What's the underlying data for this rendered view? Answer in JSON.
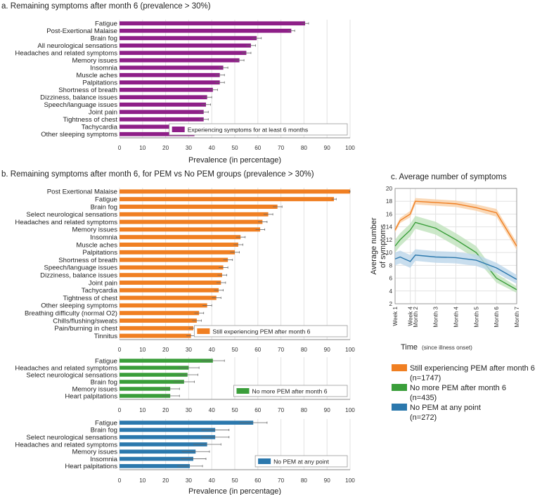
{
  "chart_data": [
    {
      "type": "bar",
      "id": "panel-a",
      "title": "a. Remaining symptoms after month 6 (prevalence > 30%)",
      "xlabel": "Prevalence (in percentage)",
      "xlim": [
        0,
        100
      ],
      "ticks": [
        0,
        10,
        20,
        30,
        40,
        50,
        60,
        70,
        80,
        90,
        100
      ],
      "color": "#8e1f88",
      "legend": "Experiencing symptoms for at least 6 months",
      "legend_position": "bottom-right",
      "categories": [
        "Fatigue",
        "Post-Exertional Malaise",
        "Brain fog",
        "All neurological sensations",
        "Headaches and related symptoms",
        "Memory issues",
        "Insomnia",
        "Muscle aches",
        "Palpitations",
        "Shortness of breath",
        "Dizziness, balance issues",
        "Speech/language issues",
        "Joint pain",
        "Tightness of chest",
        "Tachycardia",
        "Other sleeping symptoms"
      ],
      "values": [
        80.5,
        74.5,
        59.5,
        57,
        55,
        52,
        45,
        43.5,
        43.5,
        40.5,
        38,
        37.5,
        36.5,
        36.5,
        35.5,
        32.5
      ],
      "errors": [
        1.5,
        1.5,
        2,
        2,
        2,
        2,
        2,
        2,
        2,
        2,
        2,
        2,
        2,
        2,
        2,
        2
      ]
    },
    {
      "type": "bar",
      "id": "panel-b1",
      "title": "b. Remaining symptoms after month 6, for PEM vs No PEM groups (prevalence > 30%)",
      "xlim": [
        0,
        100
      ],
      "ticks": [
        0,
        10,
        20,
        30,
        40,
        50,
        60,
        70,
        80,
        90,
        100
      ],
      "color": "#f07f22",
      "legend": "Still experiencing PEM after month 6",
      "legend_position": "bottom-right",
      "categories": [
        "Post Exertional Malaise",
        "Fatigue",
        "Brain fog",
        "Select neurological sensations",
        "Headaches and related symptoms",
        "Memory issues",
        "Insomnia",
        "Muscle aches",
        "Palpitations",
        "Shortness of breath",
        "Speech/language issues",
        "Dizziness, balance issues",
        "Joint pain",
        "Tachycardia",
        "Tightness of chest",
        "Other sleeping symptoms",
        "Breathing difficulty (normal O2)",
        "Chills/flushing/sweats",
        "Pain/burning in chest",
        "Tinnitus"
      ],
      "values": [
        100,
        93,
        68.5,
        64.5,
        62,
        61,
        52.5,
        51.5,
        50,
        47,
        45,
        44.5,
        44,
        43,
        42,
        38,
        34.5,
        33.5,
        32,
        31
      ],
      "errors": [
        0.5,
        1,
        2,
        2,
        2,
        2,
        2,
        2,
        2,
        2,
        2,
        2,
        2,
        2,
        2,
        2,
        2,
        2,
        2,
        2
      ]
    },
    {
      "type": "bar",
      "id": "panel-b2",
      "xlim": [
        0,
        100
      ],
      "ticks": [
        0,
        10,
        20,
        30,
        40,
        50,
        60,
        70,
        80,
        90,
        100
      ],
      "color": "#3a9e3a",
      "legend": "No more PEM after month 6",
      "legend_position": "bottom-right",
      "categories": [
        "Fatigue",
        "Headaches and related symptoms",
        "Select neurological sensations",
        "Brain fog",
        "Memory issues",
        "Heart palpitations"
      ],
      "values": [
        40.5,
        30,
        29.5,
        28,
        22,
        22
      ],
      "errors": [
        5,
        4.5,
        4.5,
        4.5,
        4,
        4
      ]
    },
    {
      "type": "bar",
      "id": "panel-b3",
      "xlabel": "Prevalence (in percentage)",
      "xlim": [
        0,
        100
      ],
      "ticks": [
        0,
        10,
        20,
        30,
        40,
        50,
        60,
        70,
        80,
        90,
        100
      ],
      "color": "#2b78ad",
      "legend": "No PEM at any point",
      "legend_position": "bottom-right",
      "categories": [
        "Fatigue",
        "Brain fog",
        "Select neurological sensations",
        "Headaches and related symptoms",
        "Memory issues",
        "Insomnia",
        "Heart palpitations"
      ],
      "values": [
        58,
        41.5,
        41.5,
        38,
        33,
        32,
        30.5
      ],
      "errors": [
        6,
        6,
        6,
        6,
        6,
        5.5,
        5.5
      ]
    },
    {
      "type": "line",
      "id": "panel-c",
      "title": "c. Average number of symptoms",
      "xlabel": "Time",
      "xlabel_note": "(since illness onset)",
      "ylabel": "Average number of symptoms",
      "ylim": [
        2,
        20
      ],
      "yticks": [
        2,
        4,
        6,
        8,
        10,
        12,
        14,
        16,
        18,
        20
      ],
      "xticks": [
        {
          "label": "Week 1",
          "t": 0
        },
        {
          "label": "Week 4",
          "t": 0.75
        },
        {
          "label": "Month 2",
          "t": 1
        },
        {
          "label": "Month 3",
          "t": 2
        },
        {
          "label": "Month 4",
          "t": 3
        },
        {
          "label": "Month 5",
          "t": 4
        },
        {
          "label": "Month 6",
          "t": 5
        },
        {
          "label": "Month 7",
          "t": 6
        }
      ],
      "xlim": [
        0,
        6
      ],
      "series": [
        {
          "name": "Still experiencing PEM after month 6",
          "n": "(n=1747)",
          "color": "#f07f22",
          "fill": "#f9cfa6",
          "t": [
            0,
            0.25,
            0.75,
            1,
            2,
            3,
            4,
            5,
            6
          ],
          "values": [
            13.5,
            15,
            16,
            18,
            17.8,
            17.6,
            17,
            16.2,
            11
          ],
          "band": [
            0.4,
            0.4,
            0.5,
            0.5,
            0.5,
            0.5,
            0.5,
            0.6,
            0.6
          ]
        },
        {
          "name": "No more PEM after month 6",
          "n": "(n=435)",
          "color": "#3a9e3a",
          "fill": "#bfe2bb",
          "t": [
            0,
            0.25,
            0.75,
            1,
            2,
            3,
            4,
            5,
            6
          ],
          "values": [
            11,
            12,
            13.5,
            14.7,
            13.8,
            12,
            10,
            6,
            4.2
          ],
          "band": [
            1,
            1,
            1,
            1,
            1,
            1,
            1,
            0.7,
            0.5
          ]
        },
        {
          "name": "No PEM at any point",
          "n": "(n=272)",
          "color": "#2b78ad",
          "fill": "#bcd6ea",
          "t": [
            0,
            0.25,
            0.75,
            1,
            2,
            3,
            4,
            5,
            6
          ],
          "values": [
            9,
            9.3,
            8.6,
            9.6,
            9.3,
            9.2,
            8.8,
            7.6,
            5.8
          ],
          "band": [
            1,
            1,
            1,
            0.9,
            0.9,
            0.9,
            0.9,
            0.8,
            0.7
          ]
        }
      ]
    }
  ]
}
